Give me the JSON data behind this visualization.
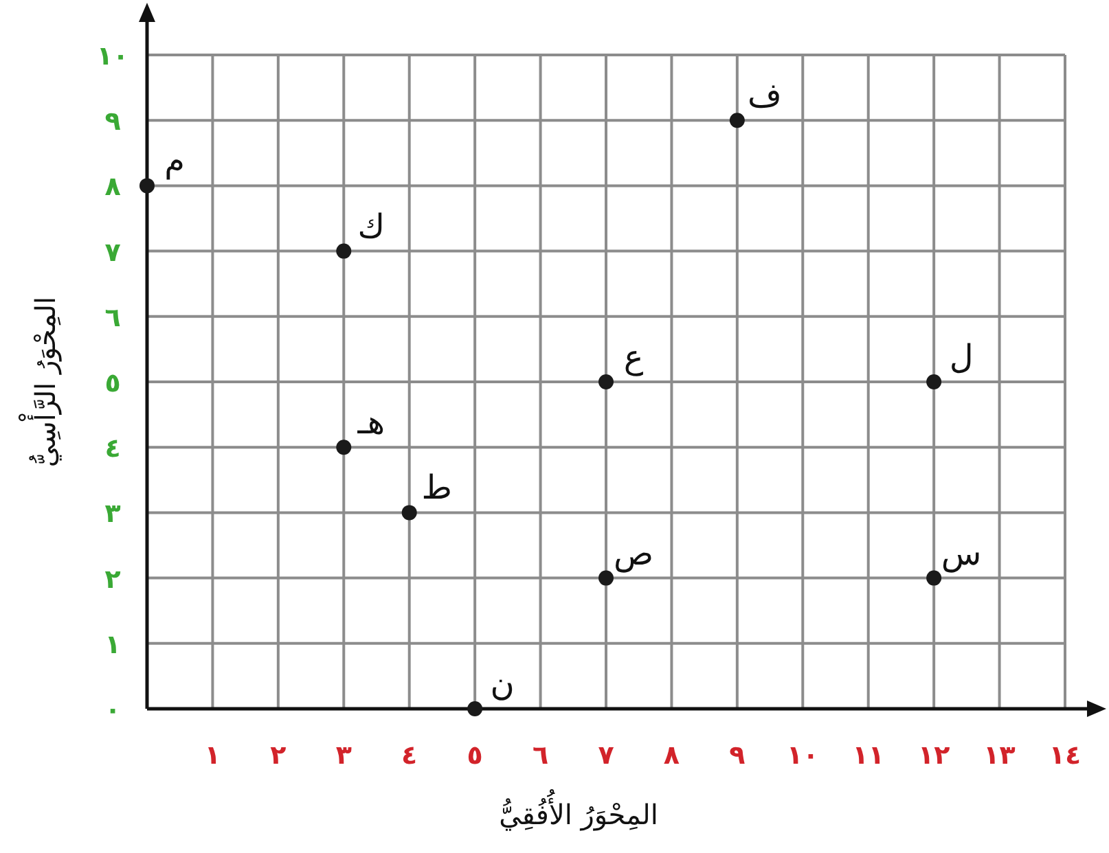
{
  "chart_data": {
    "type": "scatter",
    "xlabel": "المِحْوَرُ الأُفُقِيُّ",
    "ylabel": "المِحْوَرُ الرَّأْسِيُّ",
    "x": [
      0,
      3,
      9,
      7,
      12,
      3,
      4,
      7,
      12,
      5
    ],
    "series": [
      {
        "color": "#1a1a1a",
        "values": [
          8,
          7,
          9,
          5,
          5,
          4,
          3,
          2,
          2,
          0
        ]
      }
    ],
    "annotations": [
      {
        "text": "م",
        "x": 0,
        "y": 8
      },
      {
        "text": "ك",
        "x": 3,
        "y": 7
      },
      {
        "text": "ف",
        "x": 9,
        "y": 9
      },
      {
        "text": "ع",
        "x": 7,
        "y": 5
      },
      {
        "text": "ل",
        "x": 12,
        "y": 5
      },
      {
        "text": "هـ",
        "x": 3,
        "y": 4
      },
      {
        "text": "ط",
        "x": 4,
        "y": 3
      },
      {
        "text": "ص",
        "x": 7,
        "y": 2
      },
      {
        "text": "س",
        "x": 12,
        "y": 2
      },
      {
        "text": "ن",
        "x": 5,
        "y": 0
      }
    ],
    "xlim": [
      0,
      14
    ],
    "ylim": [
      0,
      10
    ],
    "xticks": [
      {
        "value": 0,
        "label": null
      },
      {
        "value": 1,
        "label": "١"
      },
      {
        "value": 2,
        "label": "٢"
      },
      {
        "value": 3,
        "label": "٣"
      },
      {
        "value": 4,
        "label": "٤"
      },
      {
        "value": 5,
        "label": "٥"
      },
      {
        "value": 6,
        "label": "٦"
      },
      {
        "value": 7,
        "label": "٧"
      },
      {
        "value": 8,
        "label": "٨"
      },
      {
        "value": 9,
        "label": "٩"
      },
      {
        "value": 10,
        "label": "١٠"
      },
      {
        "value": 11,
        "label": "١١"
      },
      {
        "value": 12,
        "label": "١٢"
      },
      {
        "value": 13,
        "label": "١٣"
      },
      {
        "value": 14,
        "label": "١٤"
      }
    ],
    "yticks": [
      {
        "value": 0,
        "label": "٠"
      },
      {
        "value": 1,
        "label": "١"
      },
      {
        "value": 2,
        "label": "٢"
      },
      {
        "value": 3,
        "label": "٣"
      },
      {
        "value": 4,
        "label": "٤"
      },
      {
        "value": 5,
        "label": "٥"
      },
      {
        "value": 6,
        "label": "٦"
      },
      {
        "value": 7,
        "label": "٧"
      },
      {
        "value": 8,
        "label": "٨"
      },
      {
        "value": 9,
        "label": "٩"
      },
      {
        "value": 10,
        "label": "١٠"
      }
    ],
    "grid": true,
    "marker": "circle"
  }
}
